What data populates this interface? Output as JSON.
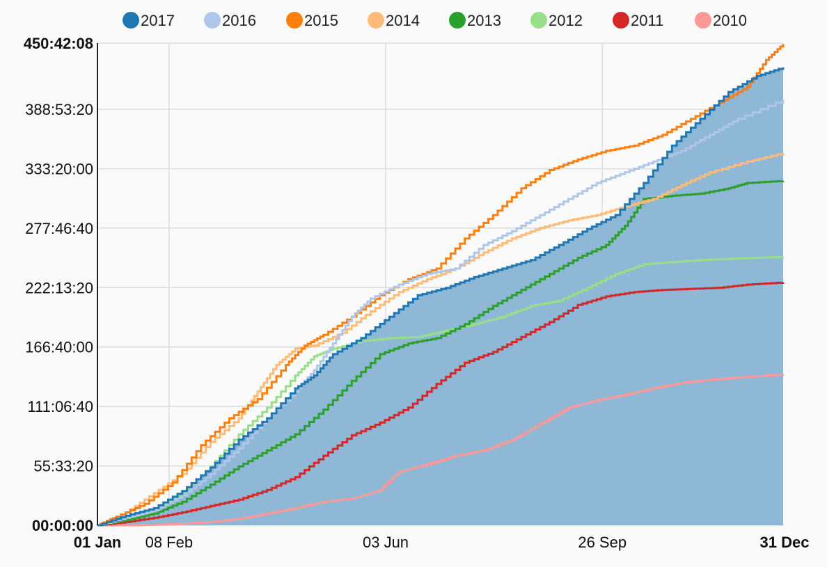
{
  "chart_data": {
    "type": "line",
    "title": "",
    "xlabel": "",
    "ylabel": "",
    "x_domain": [
      "01 Jan",
      "31 Dec"
    ],
    "x_ticks": [
      {
        "label": "01 Jan",
        "day": 0,
        "bold": true
      },
      {
        "label": "08 Feb",
        "day": 38,
        "bold": false
      },
      {
        "label": "03 Jun",
        "day": 153,
        "bold": false
      },
      {
        "label": "26 Sep",
        "day": 268,
        "bold": false
      },
      {
        "label": "31 Dec",
        "day": 364,
        "bold": true
      }
    ],
    "y_domain_hours": [
      0,
      450.7022
    ],
    "y_ticks": [
      {
        "label": "00:00:00",
        "value": 0,
        "bold": true
      },
      {
        "label": "55:33:20",
        "value": 55.5556,
        "bold": false
      },
      {
        "label": "111:06:40",
        "value": 111.1111,
        "bold": false
      },
      {
        "label": "166:40:00",
        "value": 166.6667,
        "bold": false
      },
      {
        "label": "222:13:20",
        "value": 222.2222,
        "bold": false
      },
      {
        "label": "277:46:40",
        "value": 277.7778,
        "bold": false
      },
      {
        "label": "333:20:00",
        "value": 333.3333,
        "bold": false
      },
      {
        "label": "388:53:20",
        "value": 388.8889,
        "bold": false
      },
      {
        "label": "450:42:08",
        "value": 450.7022,
        "bold": true
      }
    ],
    "grid": true,
    "legend_position": "top",
    "series": [
      {
        "name": "2017",
        "color": "#1f77b4",
        "fill": true,
        "fill_color": "#8fb7d6",
        "points": [
          [
            0,
            0
          ],
          [
            15,
            9
          ],
          [
            30,
            16
          ],
          [
            45,
            32
          ],
          [
            60,
            54
          ],
          [
            75,
            80
          ],
          [
            90,
            100
          ],
          [
            105,
            128
          ],
          [
            115,
            140
          ],
          [
            125,
            160
          ],
          [
            140,
            175
          ],
          [
            155,
            195
          ],
          [
            170,
            215
          ],
          [
            185,
            222
          ],
          [
            200,
            232
          ],
          [
            215,
            240
          ],
          [
            230,
            248
          ],
          [
            245,
            262
          ],
          [
            260,
            277
          ],
          [
            275,
            290
          ],
          [
            290,
            320
          ],
          [
            305,
            355
          ],
          [
            320,
            380
          ],
          [
            335,
            405
          ],
          [
            350,
            420
          ],
          [
            364,
            428
          ]
        ]
      },
      {
        "name": "2016",
        "color": "#aec7e8",
        "fill": false,
        "points": [
          [
            0,
            0
          ],
          [
            15,
            7
          ],
          [
            30,
            14
          ],
          [
            45,
            28
          ],
          [
            60,
            48
          ],
          [
            75,
            72
          ],
          [
            90,
            100
          ],
          [
            105,
            125
          ],
          [
            115,
            145
          ],
          [
            125,
            170
          ],
          [
            135,
            195
          ],
          [
            145,
            212
          ],
          [
            160,
            225
          ],
          [
            175,
            235
          ],
          [
            190,
            240
          ],
          [
            205,
            262
          ],
          [
            220,
            275
          ],
          [
            235,
            290
          ],
          [
            250,
            305
          ],
          [
            265,
            320
          ],
          [
            280,
            330
          ],
          [
            295,
            340
          ],
          [
            310,
            350
          ],
          [
            325,
            365
          ],
          [
            340,
            380
          ],
          [
            364,
            398
          ]
        ]
      },
      {
        "name": "2015",
        "color": "#ff7f0e",
        "fill": false,
        "points": [
          [
            0,
            0
          ],
          [
            10,
            8
          ],
          [
            25,
            20
          ],
          [
            40,
            40
          ],
          [
            55,
            75
          ],
          [
            70,
            100
          ],
          [
            85,
            118
          ],
          [
            100,
            150
          ],
          [
            110,
            168
          ],
          [
            120,
            178
          ],
          [
            135,
            195
          ],
          [
            150,
            215
          ],
          [
            165,
            230
          ],
          [
            180,
            240
          ],
          [
            195,
            268
          ],
          [
            210,
            290
          ],
          [
            225,
            315
          ],
          [
            240,
            332
          ],
          [
            255,
            342
          ],
          [
            270,
            350
          ],
          [
            285,
            355
          ],
          [
            300,
            365
          ],
          [
            315,
            380
          ],
          [
            330,
            395
          ],
          [
            345,
            410
          ],
          [
            355,
            435
          ],
          [
            364,
            450
          ]
        ]
      },
      {
        "name": "2014",
        "color": "#ffbb78",
        "fill": false,
        "points": [
          [
            0,
            0
          ],
          [
            15,
            12
          ],
          [
            30,
            30
          ],
          [
            45,
            48
          ],
          [
            60,
            78
          ],
          [
            75,
            100
          ],
          [
            85,
            125
          ],
          [
            95,
            150
          ],
          [
            105,
            165
          ],
          [
            115,
            168
          ],
          [
            130,
            180
          ],
          [
            145,
            200
          ],
          [
            160,
            218
          ],
          [
            175,
            230
          ],
          [
            190,
            240
          ],
          [
            205,
            255
          ],
          [
            220,
            268
          ],
          [
            235,
            278
          ],
          [
            250,
            285
          ],
          [
            265,
            290
          ],
          [
            280,
            298
          ],
          [
            295,
            305
          ],
          [
            310,
            318
          ],
          [
            325,
            330
          ],
          [
            345,
            340
          ],
          [
            364,
            348
          ]
        ]
      },
      {
        "name": "2013",
        "color": "#2ca02c",
        "fill": false,
        "points": [
          [
            0,
            0
          ],
          [
            15,
            5
          ],
          [
            30,
            11
          ],
          [
            45,
            22
          ],
          [
            60,
            38
          ],
          [
            75,
            55
          ],
          [
            90,
            70
          ],
          [
            105,
            85
          ],
          [
            120,
            108
          ],
          [
            135,
            135
          ],
          [
            150,
            160
          ],
          [
            165,
            170
          ],
          [
            180,
            175
          ],
          [
            195,
            188
          ],
          [
            210,
            205
          ],
          [
            225,
            220
          ],
          [
            240,
            235
          ],
          [
            255,
            250
          ],
          [
            270,
            262
          ],
          [
            280,
            280
          ],
          [
            290,
            305
          ],
          [
            305,
            308
          ],
          [
            320,
            310
          ],
          [
            335,
            315
          ],
          [
            345,
            320
          ],
          [
            364,
            322
          ]
        ]
      },
      {
        "name": "2012",
        "color": "#98df8a",
        "fill": false,
        "points": [
          [
            0,
            0
          ],
          [
            15,
            6
          ],
          [
            30,
            14
          ],
          [
            45,
            30
          ],
          [
            60,
            55
          ],
          [
            75,
            85
          ],
          [
            90,
            110
          ],
          [
            105,
            140
          ],
          [
            115,
            158
          ],
          [
            125,
            165
          ],
          [
            140,
            172
          ],
          [
            155,
            175
          ],
          [
            170,
            176
          ],
          [
            185,
            182
          ],
          [
            200,
            188
          ],
          [
            215,
            195
          ],
          [
            230,
            205
          ],
          [
            245,
            210
          ],
          [
            260,
            222
          ],
          [
            275,
            235
          ],
          [
            290,
            244
          ],
          [
            305,
            246
          ],
          [
            320,
            248
          ],
          [
            335,
            249
          ],
          [
            350,
            250
          ],
          [
            364,
            251
          ]
        ]
      },
      {
        "name": "2011",
        "color": "#d62728",
        "fill": false,
        "points": [
          [
            0,
            0
          ],
          [
            15,
            3
          ],
          [
            30,
            7
          ],
          [
            45,
            12
          ],
          [
            60,
            18
          ],
          [
            75,
            24
          ],
          [
            90,
            33
          ],
          [
            105,
            45
          ],
          [
            120,
            65
          ],
          [
            135,
            84
          ],
          [
            150,
            96
          ],
          [
            165,
            110
          ],
          [
            180,
            132
          ],
          [
            195,
            152
          ],
          [
            210,
            162
          ],
          [
            225,
            176
          ],
          [
            240,
            190
          ],
          [
            255,
            206
          ],
          [
            270,
            214
          ],
          [
            285,
            218
          ],
          [
            300,
            220
          ],
          [
            315,
            221
          ],
          [
            330,
            222
          ],
          [
            345,
            225
          ],
          [
            364,
            227
          ]
        ]
      },
      {
        "name": "2010",
        "color": "#ff9896",
        "fill": false,
        "points": [
          [
            0,
            0
          ],
          [
            20,
            0
          ],
          [
            40,
            1
          ],
          [
            60,
            3
          ],
          [
            75,
            6
          ],
          [
            90,
            11
          ],
          [
            105,
            16
          ],
          [
            120,
            22
          ],
          [
            135,
            25
          ],
          [
            150,
            33
          ],
          [
            160,
            50
          ],
          [
            175,
            57
          ],
          [
            190,
            65
          ],
          [
            205,
            70
          ],
          [
            220,
            80
          ],
          [
            235,
            95
          ],
          [
            250,
            110
          ],
          [
            265,
            117
          ],
          [
            280,
            122
          ],
          [
            295,
            128
          ],
          [
            310,
            133
          ],
          [
            325,
            136
          ],
          [
            340,
            138
          ],
          [
            355,
            140
          ],
          [
            364,
            141
          ]
        ]
      }
    ]
  }
}
